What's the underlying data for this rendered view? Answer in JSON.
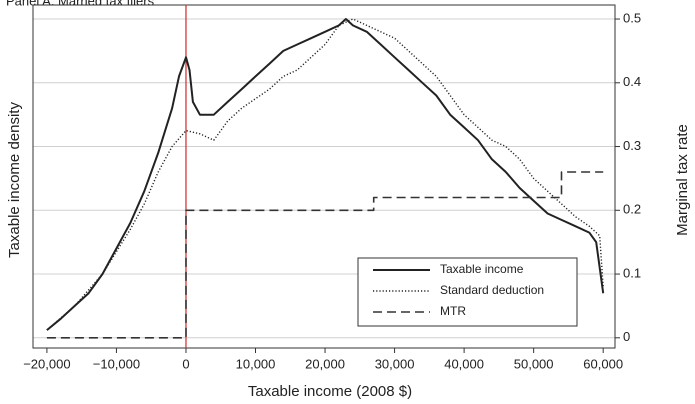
{
  "chart_data": {
    "type": "line",
    "title": "Panel A. Married tax filers",
    "xlabel": "Taxable income (2008 $)",
    "ylabel": "Taxable income density",
    "y2label": "Marginal tax rate",
    "xlim": [
      -22000,
      61700
    ],
    "ylim": [
      -0.016,
      0.522
    ],
    "xticks": [
      {
        "value": -20000,
        "label": "−20,000"
      },
      {
        "value": -10000,
        "label": "−10,000"
      },
      0,
      {
        "value": 10000,
        "label": "10,000"
      },
      {
        "value": 20000,
        "label": "20,000"
      },
      {
        "value": 30000,
        "label": "30,000"
      },
      {
        "value": 40000,
        "label": "40,000"
      },
      {
        "value": 50000,
        "label": "50,000"
      },
      {
        "value": 60000,
        "label": "60,000"
      }
    ],
    "yticks": [
      0,
      0.1,
      0.2,
      0.3,
      0.4,
      0.5
    ],
    "grid": true,
    "legend": "lower right",
    "vline": {
      "x": 0,
      "color": "#d03a3a"
    },
    "series": [
      {
        "name": "Taxable income",
        "color": "#222222",
        "dash": "solid",
        "x": [
          -20000,
          -18000,
          -16000,
          -14000,
          -12000,
          -10000,
          -8000,
          -6000,
          -4000,
          -2000,
          -1000,
          0,
          500,
          1000,
          2000,
          4000,
          6000,
          8000,
          10000,
          12000,
          14000,
          16000,
          18000,
          20000,
          22000,
          23000,
          24000,
          26000,
          28000,
          30000,
          32000,
          34000,
          36000,
          38000,
          40000,
          42000,
          44000,
          46000,
          48000,
          50000,
          52000,
          54000,
          56000,
          58000,
          59000,
          60000
        ],
        "values": [
          0.012,
          0.03,
          0.05,
          0.07,
          0.1,
          0.14,
          0.18,
          0.23,
          0.29,
          0.36,
          0.41,
          0.44,
          0.42,
          0.37,
          0.35,
          0.35,
          0.37,
          0.39,
          0.41,
          0.43,
          0.45,
          0.46,
          0.47,
          0.48,
          0.49,
          0.5,
          0.49,
          0.48,
          0.46,
          0.44,
          0.42,
          0.4,
          0.38,
          0.35,
          0.33,
          0.31,
          0.28,
          0.26,
          0.235,
          0.215,
          0.195,
          0.185,
          0.175,
          0.165,
          0.15,
          0.07
        ]
      },
      {
        "name": "Standard deduction",
        "color": "#222222",
        "dash": "dotted",
        "x": [
          -20000,
          -16000,
          -12000,
          -8000,
          -6000,
          -4000,
          -2000,
          0,
          2000,
          4000,
          6000,
          8000,
          10000,
          12000,
          14000,
          16000,
          18000,
          20000,
          22000,
          24000,
          26000,
          28000,
          30000,
          32000,
          34000,
          36000,
          38000,
          40000,
          42000,
          44000,
          46000,
          48000,
          50000,
          52000,
          54000,
          56000,
          58000,
          59500,
          60000
        ],
        "values": [
          0.012,
          0.05,
          0.1,
          0.17,
          0.21,
          0.26,
          0.3,
          0.325,
          0.32,
          0.31,
          0.34,
          0.36,
          0.375,
          0.39,
          0.41,
          0.42,
          0.44,
          0.46,
          0.49,
          0.5,
          0.49,
          0.48,
          0.47,
          0.45,
          0.43,
          0.41,
          0.38,
          0.35,
          0.33,
          0.31,
          0.3,
          0.28,
          0.25,
          0.23,
          0.21,
          0.19,
          0.175,
          0.16,
          0.08
        ]
      },
      {
        "name": "MTR",
        "color": "#333333",
        "dash": "dashed",
        "x": [
          -20000,
          0,
          0,
          27000,
          27000,
          54000,
          54000,
          60000
        ],
        "values": [
          0,
          0,
          0.2,
          0.2,
          0.22,
          0.22,
          0.26,
          0.26
        ]
      }
    ]
  }
}
